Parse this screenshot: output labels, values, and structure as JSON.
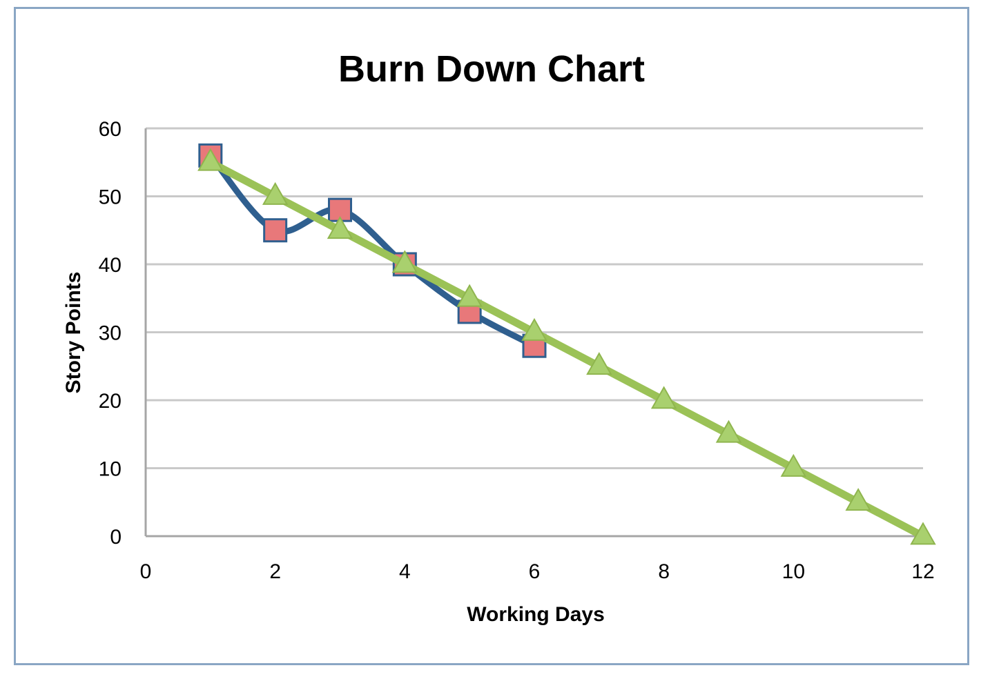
{
  "chart_data": {
    "type": "line",
    "title": "Burn Down Chart",
    "xlabel": "Working Days",
    "ylabel": "Story Points",
    "xlim": [
      0,
      12
    ],
    "ylim": [
      0,
      60
    ],
    "xticks": [
      0,
      2,
      4,
      6,
      8,
      10,
      12
    ],
    "yticks": [
      0,
      10,
      20,
      30,
      40,
      50,
      60
    ],
    "grid": "horizontal",
    "legend": "none",
    "series": [
      {
        "marker": "square",
        "line_color": "#2f5f8f",
        "marker_color": "#e8787a",
        "x": [
          1,
          2,
          3,
          4,
          5,
          6
        ],
        "y": [
          56,
          45,
          48,
          40,
          33,
          28
        ]
      },
      {
        "marker": "triangle",
        "line_color": "#9bc257",
        "marker_color": "#a9d06e",
        "x": [
          1,
          2,
          3,
          4,
          5,
          6,
          7,
          8,
          9,
          10,
          11,
          12
        ],
        "y": [
          55,
          50,
          45,
          40,
          35,
          30,
          25,
          20,
          15,
          10,
          5,
          0
        ]
      }
    ]
  }
}
